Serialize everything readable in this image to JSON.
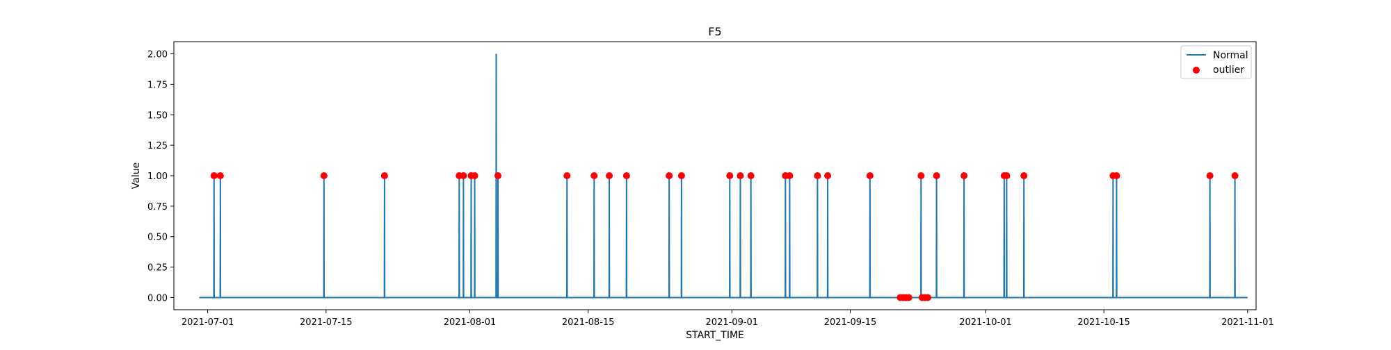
{
  "chart_data": {
    "type": "line",
    "title": "F5",
    "xlabel": "START_TIME",
    "ylabel": "Value",
    "xlim": [
      "2021-06-27",
      "2021-11-02"
    ],
    "ylim": [
      -0.1,
      2.1
    ],
    "x_ticks": [
      "2021-07-01",
      "2021-07-15",
      "2021-08-01",
      "2021-08-15",
      "2021-09-01",
      "2021-09-15",
      "2021-10-01",
      "2021-10-15",
      "2021-11-01"
    ],
    "y_ticks": [
      "0.00",
      "0.25",
      "0.50",
      "0.75",
      "1.00",
      "1.25",
      "1.50",
      "1.75",
      "2.00"
    ],
    "grid": false,
    "legend": {
      "position": "top-right"
    },
    "series": [
      {
        "name": "Normal",
        "kind": "line",
        "color": "#1f77b4",
        "x_range": [
          "2021-06-30",
          "2021-11-01"
        ],
        "baseline": 0,
        "spikes": [
          {
            "x": "2021-07-01 18:00",
            "y": 1
          },
          {
            "x": "2021-07-02 12:00",
            "y": 1
          },
          {
            "x": "2021-07-14 18:00",
            "y": 1
          },
          {
            "x": "2021-07-21 22:00",
            "y": 1
          },
          {
            "x": "2021-07-30 18:00",
            "y": 1
          },
          {
            "x": "2021-07-31 06:00",
            "y": 1
          },
          {
            "x": "2021-08-01 04:00",
            "y": 1
          },
          {
            "x": "2021-08-01 14:00",
            "y": 1
          },
          {
            "x": "2021-08-04 03:00",
            "y": 2
          },
          {
            "x": "2021-08-04 08:00",
            "y": 1
          },
          {
            "x": "2021-08-12 12:00",
            "y": 1
          },
          {
            "x": "2021-08-15 17:00",
            "y": 1
          },
          {
            "x": "2021-08-17 12:00",
            "y": 1
          },
          {
            "x": "2021-08-19 13:00",
            "y": 1
          },
          {
            "x": "2021-08-24 14:00",
            "y": 1
          },
          {
            "x": "2021-08-26 01:00",
            "y": 1
          },
          {
            "x": "2021-08-31 18:00",
            "y": 1
          },
          {
            "x": "2021-09-02 00:00",
            "y": 1
          },
          {
            "x": "2021-09-03 06:00",
            "y": 1
          },
          {
            "x": "2021-09-07 08:00",
            "y": 1
          },
          {
            "x": "2021-09-07 20:00",
            "y": 1
          },
          {
            "x": "2021-09-11 03:00",
            "y": 1
          },
          {
            "x": "2021-09-12 08:00",
            "y": 1
          },
          {
            "x": "2021-09-17 08:00",
            "y": 1
          },
          {
            "x": "2021-09-23 09:00",
            "y": 1
          },
          {
            "x": "2021-09-25 05:00",
            "y": 1
          },
          {
            "x": "2021-09-28 11:00",
            "y": 1
          },
          {
            "x": "2021-10-03 05:00",
            "y": 1
          },
          {
            "x": "2021-10-03 12:00",
            "y": 1
          },
          {
            "x": "2021-10-05 13:00",
            "y": 1
          },
          {
            "x": "2021-10-16 02:00",
            "y": 1
          },
          {
            "x": "2021-10-16 12:00",
            "y": 1
          },
          {
            "x": "2021-10-27 13:00",
            "y": 1
          },
          {
            "x": "2021-10-30 12:00",
            "y": 1
          }
        ]
      },
      {
        "name": "outlier",
        "kind": "scatter",
        "color": "#ff0000",
        "points": [
          {
            "x": "2021-07-01 18:00",
            "y": 1
          },
          {
            "x": "2021-07-02 12:00",
            "y": 1
          },
          {
            "x": "2021-07-14 18:00",
            "y": 1
          },
          {
            "x": "2021-07-21 22:00",
            "y": 1
          },
          {
            "x": "2021-07-30 18:00",
            "y": 1
          },
          {
            "x": "2021-07-31 06:00",
            "y": 1
          },
          {
            "x": "2021-08-01 04:00",
            "y": 1
          },
          {
            "x": "2021-08-01 14:00",
            "y": 1
          },
          {
            "x": "2021-08-04 08:00",
            "y": 1
          },
          {
            "x": "2021-08-12 12:00",
            "y": 1
          },
          {
            "x": "2021-08-15 17:00",
            "y": 1
          },
          {
            "x": "2021-08-17 12:00",
            "y": 1
          },
          {
            "x": "2021-08-19 13:00",
            "y": 1
          },
          {
            "x": "2021-08-24 14:00",
            "y": 1
          },
          {
            "x": "2021-08-26 01:00",
            "y": 1
          },
          {
            "x": "2021-08-31 18:00",
            "y": 1
          },
          {
            "x": "2021-09-02 00:00",
            "y": 1
          },
          {
            "x": "2021-09-03 06:00",
            "y": 1
          },
          {
            "x": "2021-09-07 08:00",
            "y": 1
          },
          {
            "x": "2021-09-07 20:00",
            "y": 1
          },
          {
            "x": "2021-09-11 03:00",
            "y": 1
          },
          {
            "x": "2021-09-12 08:00",
            "y": 1
          },
          {
            "x": "2021-09-17 08:00",
            "y": 1
          },
          {
            "x": "2021-09-20 22:00",
            "y": 0
          },
          {
            "x": "2021-09-21 06:00",
            "y": 0
          },
          {
            "x": "2021-09-21 14:00",
            "y": 0
          },
          {
            "x": "2021-09-21 22:00",
            "y": 0
          },
          {
            "x": "2021-09-23 09:00",
            "y": 1
          },
          {
            "x": "2021-09-23 12:00",
            "y": 0
          },
          {
            "x": "2021-09-23 20:00",
            "y": 0
          },
          {
            "x": "2021-09-24 04:00",
            "y": 0
          },
          {
            "x": "2021-09-25 05:00",
            "y": 1
          },
          {
            "x": "2021-09-28 11:00",
            "y": 1
          },
          {
            "x": "2021-10-03 05:00",
            "y": 1
          },
          {
            "x": "2021-10-03 12:00",
            "y": 1
          },
          {
            "x": "2021-10-05 13:00",
            "y": 1
          },
          {
            "x": "2021-10-16 02:00",
            "y": 1
          },
          {
            "x": "2021-10-16 12:00",
            "y": 1
          },
          {
            "x": "2021-10-27 13:00",
            "y": 1
          },
          {
            "x": "2021-10-30 12:00",
            "y": 1
          }
        ]
      }
    ]
  }
}
